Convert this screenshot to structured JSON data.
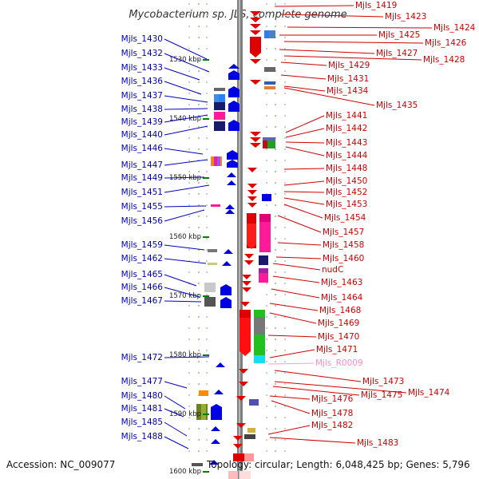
{
  "title": "Mycobacterium sp. JLS, complete genome",
  "footer": {
    "accession": "Accession: NC_009077",
    "topology": "Topology: circular; Length: 6,048,425 bp; Genes: 5,796"
  },
  "colors": {
    "backbone": "#808080",
    "forward_gene": "#e00000",
    "reverse_gene": "#0000e0",
    "left_label": "#0000b0",
    "right_label": "#d00000",
    "rna_label": "#ff8cc8",
    "tick": "#008000"
  },
  "ticks": [
    "1530 kbp",
    "1540 kbp",
    "1550 kbp",
    "1560 kbp",
    "1570 kbp",
    "1580 kbp",
    "1590 kbp",
    "1600 kbp"
  ],
  "left_labels": [
    "Mjls_1430",
    "Mjls_1432",
    "Mjls_1433",
    "Mjls_1436",
    "Mjls_1437",
    "Mjls_1438",
    "Mjls_1439",
    "Mjls_1440",
    "Mjls_1446",
    "Mjls_1447",
    "Mjls_1449",
    "Mjls_1451",
    "Mjls_1455",
    "Mjls_1456",
    "Mjls_1459",
    "Mjls_1462",
    "Mjls_1465",
    "Mjls_1466",
    "Mjls_1467",
    "Mjls_1472",
    "Mjls_1477",
    "Mjls_1480",
    "Mjls_1481",
    "Mjls_1485",
    "Mjls_1488"
  ],
  "right_labels": [
    "Mjls_1419",
    "Mjls_1423",
    "Mjls_1424",
    "Mjls_1425",
    "Mjls_1426",
    "Mjls_1427",
    "Mjls_1428",
    "Mjls_1429",
    "Mjls_1431",
    "Mjls_1434",
    "Mjls_1435",
    "Mjls_1441",
    "Mjls_1442",
    "Mjls_1443",
    "Mjls_1444",
    "Mjls_1448",
    "Mjls_1450",
    "Mjls_1452",
    "Mjls_1453",
    "Mjls_1454",
    "Mjls_1457",
    "Mjls_1458",
    "Mjls_1460",
    "nudC",
    "Mjls_1463",
    "Mjls_1464",
    "Mjls_1468",
    "Mjls_1469",
    "Mjls_1470",
    "Mjls_1471",
    "Mjls_R0009",
    "Mjls_1473",
    "Mjls_1474",
    "Mjls_1475",
    "Mjls_1476",
    "Mjls_1478",
    "Mjls_1482",
    "Mjls_1483"
  ]
}
